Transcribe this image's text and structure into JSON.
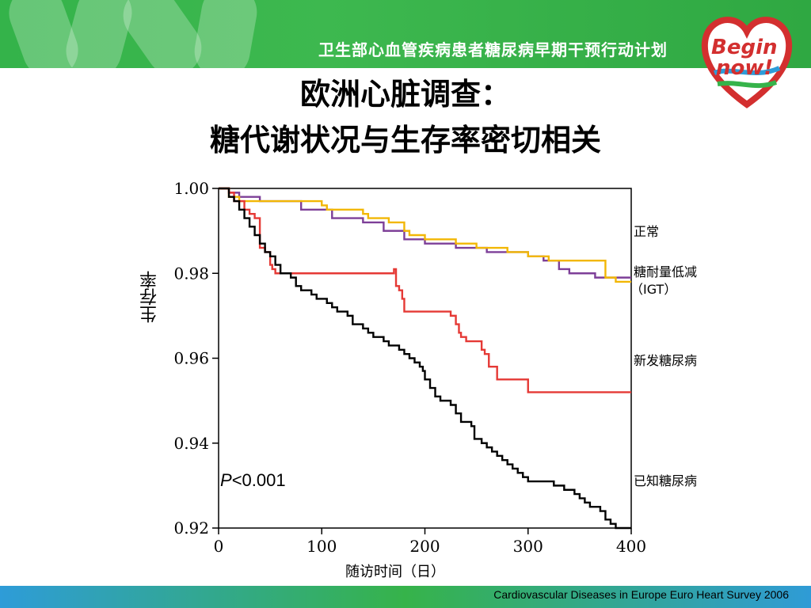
{
  "header": {
    "banner_title": "卫生部心血管疾病患者糖尿病早期干预行动计划",
    "logo_text_top": "Begin",
    "logo_text_bottom": "now!"
  },
  "slide": {
    "title_line1": "欧洲心脏调查：",
    "title_line2": "糖代谢状况与生存率密切相关",
    "source": "Cardiovascular Diseases in Europe  Euro Heart Survey  2006"
  },
  "colors": {
    "banner_green": "#34b34a",
    "normal": "#7d3f98",
    "igt": "#f2b705",
    "new_diabetes": "#e53935",
    "known_diabetes": "#000000"
  },
  "chart_data": {
    "type": "line",
    "title": "",
    "xlabel": "随访时间（日）",
    "ylabel": "生存率",
    "xlim": [
      0,
      400
    ],
    "ylim": [
      0.92,
      1.0
    ],
    "xticks": [
      0,
      100,
      200,
      300,
      400
    ],
    "yticks": [
      0.92,
      0.94,
      0.96,
      0.98,
      1.0
    ],
    "ytick_labels": [
      "0.92",
      "0.94",
      "0.96",
      "0.98",
      "1.00"
    ],
    "xtick_labels": [
      "0",
      "100",
      "200",
      "300",
      "400"
    ],
    "annotation": {
      "italic": "P",
      "rest": "<0.001"
    },
    "legend": [
      "正常",
      "糖耐量低减",
      "（IGT）",
      "新发糖尿病",
      "已知糖尿病"
    ],
    "series": [
      {
        "name": "正常",
        "color_key": "normal",
        "points": [
          [
            0,
            1.0
          ],
          [
            10,
            0.999
          ],
          [
            20,
            0.998
          ],
          [
            40,
            0.997
          ],
          [
            60,
            0.997
          ],
          [
            80,
            0.995
          ],
          [
            110,
            0.994
          ],
          [
            110,
            0.993
          ],
          [
            135,
            0.993
          ],
          [
            140,
            0.992
          ],
          [
            160,
            0.992
          ],
          [
            160,
            0.99
          ],
          [
            175,
            0.99
          ],
          [
            180,
            0.988
          ],
          [
            195,
            0.988
          ],
          [
            200,
            0.987
          ],
          [
            215,
            0.987
          ],
          [
            230,
            0.986
          ],
          [
            260,
            0.986
          ],
          [
            260,
            0.985
          ],
          [
            280,
            0.985
          ],
          [
            300,
            0.984
          ],
          [
            310,
            0.984
          ],
          [
            315,
            0.983
          ],
          [
            325,
            0.983
          ],
          [
            330,
            0.981
          ],
          [
            335,
            0.981
          ],
          [
            340,
            0.98
          ],
          [
            360,
            0.98
          ],
          [
            365,
            0.979
          ],
          [
            400,
            0.979
          ]
        ]
      },
      {
        "name": "糖耐量低减（IGT）",
        "color_key": "igt",
        "points": [
          [
            0,
            1.0
          ],
          [
            10,
            0.998
          ],
          [
            20,
            0.997
          ],
          [
            60,
            0.997
          ],
          [
            100,
            0.996
          ],
          [
            105,
            0.995
          ],
          [
            140,
            0.994
          ],
          [
            145,
            0.993
          ],
          [
            165,
            0.992
          ],
          [
            180,
            0.99
          ],
          [
            185,
            0.989
          ],
          [
            200,
            0.988
          ],
          [
            230,
            0.987
          ],
          [
            250,
            0.987
          ],
          [
            250,
            0.986
          ],
          [
            270,
            0.986
          ],
          [
            280,
            0.985
          ],
          [
            300,
            0.984
          ],
          [
            320,
            0.984
          ],
          [
            320,
            0.983
          ],
          [
            370,
            0.983
          ],
          [
            375,
            0.979
          ],
          [
            380,
            0.979
          ],
          [
            385,
            0.978
          ],
          [
            400,
            0.978
          ]
        ]
      },
      {
        "name": "新发糖尿病",
        "color_key": "new_diabetes",
        "points": [
          [
            0,
            1.0
          ],
          [
            10,
            0.999
          ],
          [
            15,
            0.997
          ],
          [
            25,
            0.995
          ],
          [
            30,
            0.994
          ],
          [
            35,
            0.993
          ],
          [
            40,
            0.99
          ],
          [
            40,
            0.986
          ],
          [
            45,
            0.985
          ],
          [
            50,
            0.982
          ],
          [
            52,
            0.981
          ],
          [
            55,
            0.98
          ],
          [
            170,
            0.981
          ],
          [
            172,
            0.977
          ],
          [
            175,
            0.976
          ],
          [
            178,
            0.974
          ],
          [
            180,
            0.971
          ],
          [
            210,
            0.971
          ],
          [
            225,
            0.97
          ],
          [
            230,
            0.968
          ],
          [
            233,
            0.966
          ],
          [
            235,
            0.965
          ],
          [
            240,
            0.964
          ],
          [
            250,
            0.964
          ],
          [
            255,
            0.962
          ],
          [
            258,
            0.961
          ],
          [
            262,
            0.958
          ],
          [
            270,
            0.957
          ],
          [
            270,
            0.955
          ],
          [
            295,
            0.955
          ],
          [
            300,
            0.953
          ],
          [
            300,
            0.952
          ],
          [
            400,
            0.952
          ]
        ]
      },
      {
        "name": "已知糖尿病",
        "color_key": "known_diabetes",
        "points": [
          [
            0,
            1.0
          ],
          [
            10,
            0.998
          ],
          [
            15,
            0.997
          ],
          [
            20,
            0.995
          ],
          [
            25,
            0.993
          ],
          [
            30,
            0.991
          ],
          [
            35,
            0.989
          ],
          [
            40,
            0.987
          ],
          [
            45,
            0.985
          ],
          [
            50,
            0.984
          ],
          [
            55,
            0.982
          ],
          [
            60,
            0.98
          ],
          [
            70,
            0.979
          ],
          [
            75,
            0.977
          ],
          [
            80,
            0.976
          ],
          [
            90,
            0.975
          ],
          [
            95,
            0.974
          ],
          [
            105,
            0.973
          ],
          [
            110,
            0.972
          ],
          [
            115,
            0.971
          ],
          [
            125,
            0.97
          ],
          [
            130,
            0.968
          ],
          [
            140,
            0.967
          ],
          [
            145,
            0.966
          ],
          [
            150,
            0.965
          ],
          [
            160,
            0.964
          ],
          [
            165,
            0.963
          ],
          [
            175,
            0.962
          ],
          [
            180,
            0.961
          ],
          [
            185,
            0.96
          ],
          [
            190,
            0.959
          ],
          [
            195,
            0.958
          ],
          [
            198,
            0.957
          ],
          [
            200,
            0.955
          ],
          [
            205,
            0.953
          ],
          [
            210,
            0.951
          ],
          [
            215,
            0.95
          ],
          [
            225,
            0.949
          ],
          [
            230,
            0.947
          ],
          [
            235,
            0.945
          ],
          [
            240,
            0.945
          ],
          [
            245,
            0.944
          ],
          [
            248,
            0.941
          ],
          [
            255,
            0.94
          ],
          [
            260,
            0.939
          ],
          [
            265,
            0.938
          ],
          [
            270,
            0.937
          ],
          [
            275,
            0.936
          ],
          [
            280,
            0.935
          ],
          [
            285,
            0.934
          ],
          [
            290,
            0.933
          ],
          [
            295,
            0.932
          ],
          [
            300,
            0.931
          ],
          [
            320,
            0.931
          ],
          [
            325,
            0.93
          ],
          [
            335,
            0.929
          ],
          [
            345,
            0.928
          ],
          [
            350,
            0.927
          ],
          [
            355,
            0.926
          ],
          [
            360,
            0.925
          ],
          [
            370,
            0.924
          ],
          [
            375,
            0.922
          ],
          [
            380,
            0.921
          ],
          [
            385,
            0.92
          ],
          [
            400,
            0.92
          ]
        ]
      }
    ]
  }
}
